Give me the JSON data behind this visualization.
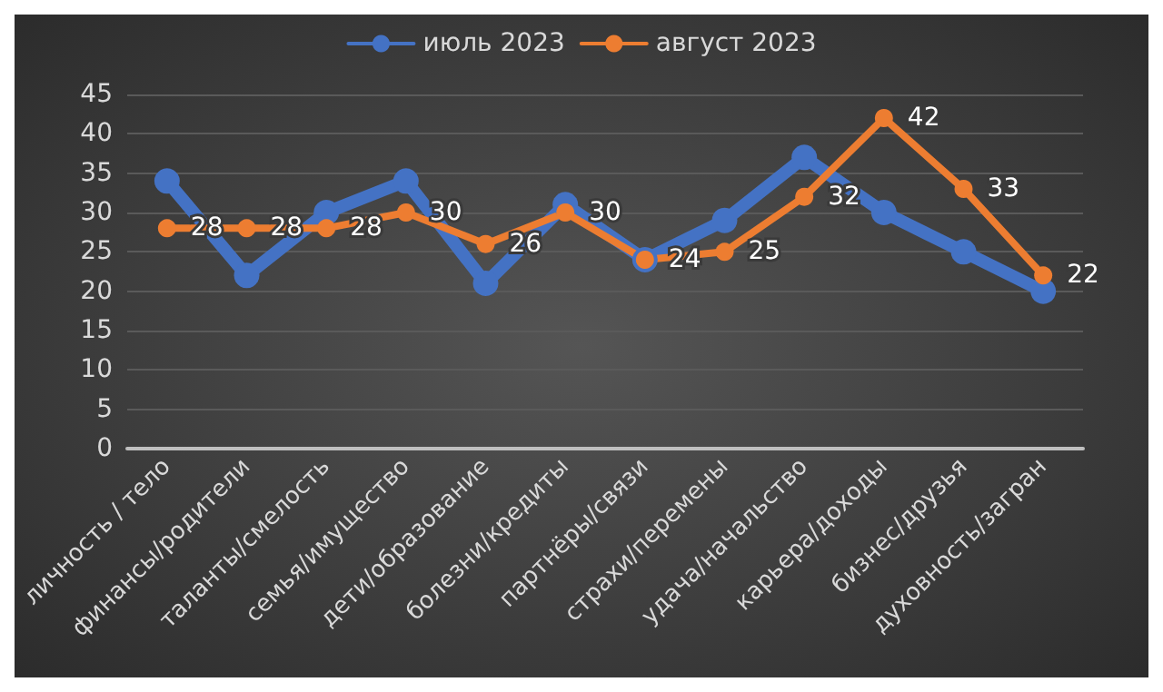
{
  "chart_data": {
    "type": "line",
    "categories": [
      "личность / тело",
      "финансы/родители",
      "таланты/смелость",
      "семья/имущество",
      "дети/образование",
      "болезни/кредиты",
      "партнёры/связи",
      "страхи/перемены",
      "удача/начальство",
      "карьера/доходы",
      "бизнес/друзья",
      "духовность/загран"
    ],
    "series": [
      {
        "name": "июль 2023",
        "color": "#4472c4",
        "values": [
          34,
          22,
          30,
          34,
          21,
          31,
          24,
          29,
          37,
          30,
          25,
          20
        ]
      },
      {
        "name": "август 2023",
        "color": "#ed7d31",
        "values": [
          28,
          28,
          28,
          30,
          26,
          30,
          24,
          25,
          32,
          42,
          33,
          22
        ],
        "value_labels": [
          "28",
          "28",
          "28",
          "30",
          "26",
          "30",
          "24",
          "25",
          "32",
          "42",
          "33",
          "22"
        ]
      }
    ],
    "ylim": [
      0,
      45
    ],
    "yticks": [
      0,
      5,
      10,
      15,
      20,
      25,
      30,
      35,
      40,
      45
    ],
    "grid": "y",
    "legend": "top",
    "marker": "circle",
    "line_style": "solid"
  }
}
